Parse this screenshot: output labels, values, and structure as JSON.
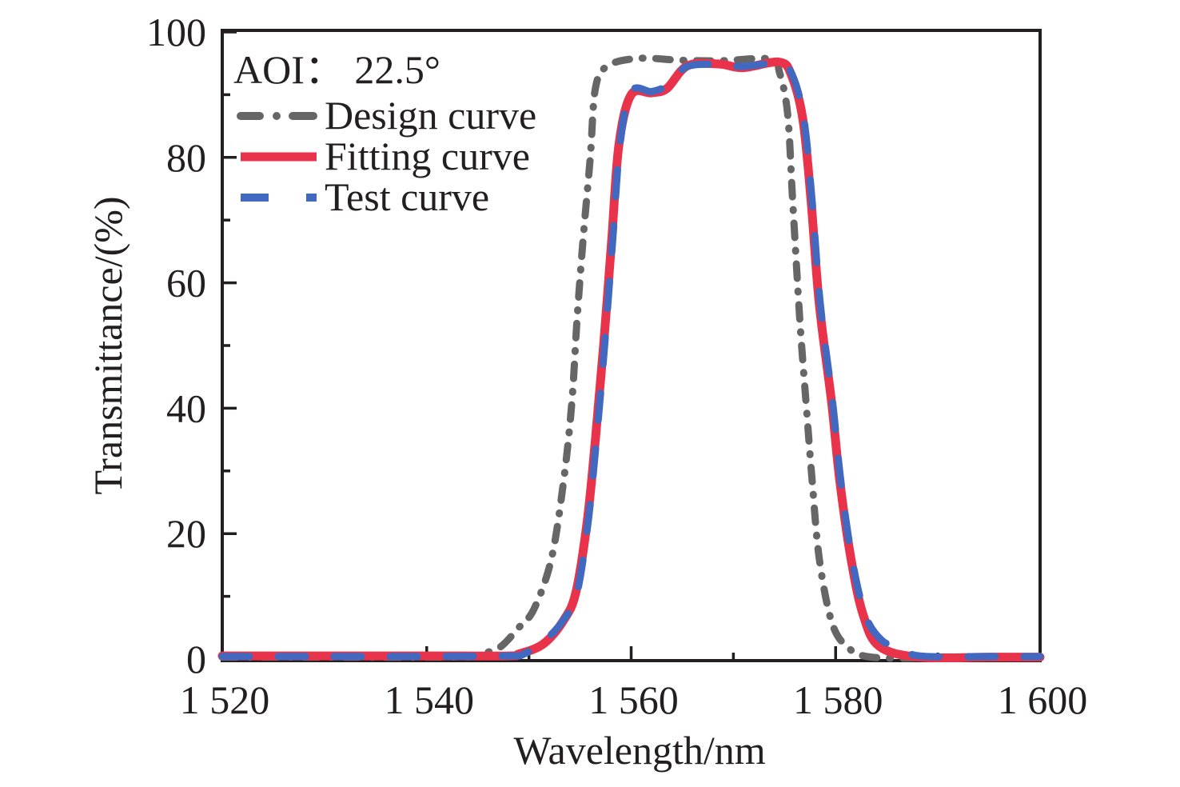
{
  "chart_data": {
    "type": "line",
    "title": "",
    "xlabel": "Wavelength/nm",
    "ylabel": "Transmittance/(%)",
    "xlim": [
      1520,
      1600
    ],
    "ylim": [
      0,
      100
    ],
    "x_ticks": [
      1520,
      1540,
      1560,
      1580,
      1600
    ],
    "x_tick_labels": [
      "1 520",
      "1 540",
      "1 560",
      "1 580",
      "1 600"
    ],
    "x_minor_ticks": [
      1530,
      1550,
      1570,
      1590
    ],
    "y_ticks": [
      0,
      20,
      40,
      60,
      80,
      100
    ],
    "y_tick_labels": [
      "0",
      "20",
      "40",
      "60",
      "80",
      "100"
    ],
    "y_minor_ticks": [
      10,
      30,
      50,
      70,
      90
    ],
    "grid": false,
    "legend_position": "top-left",
    "annotation": "AOI： 22.5°",
    "series": [
      {
        "name": "Design curve",
        "style": "dash-dot",
        "color": "#666666",
        "x": [
          1520,
          1530,
          1540,
          1545,
          1545.2,
          1547.1,
          1549,
          1550.5,
          1552.2,
          1553.4,
          1554.2,
          1554.7,
          1555.3,
          1556,
          1556.5,
          1557.7,
          1560.8,
          1564.7,
          1568.6,
          1573.7,
          1574.5,
          1575.3,
          1575.8,
          1576.5,
          1577.1,
          1577.7,
          1578.4,
          1579.6,
          1581.1,
          1583.5,
          1590,
          1600
        ],
        "y": [
          0.3,
          0.3,
          0.3,
          0.4,
          0.8,
          1.8,
          5,
          8,
          16,
          28.5,
          41,
          54,
          67,
          80,
          91,
          94.6,
          95.8,
          95.5,
          95.4,
          95.7,
          93.6,
          87,
          73,
          54,
          41,
          28.5,
          16,
          6,
          2,
          0.3,
          0.2,
          0.2
        ]
      },
      {
        "name": "Fitting curve",
        "style": "solid",
        "color": "#e8334a",
        "x": [
          1520,
          1530,
          1540,
          1548,
          1549,
          1551.4,
          1553.4,
          1554.6,
          1555.7,
          1556.5,
          1557.3,
          1558.1,
          1558.8,
          1560,
          1562,
          1563.5,
          1565.5,
          1568.6,
          1570.9,
          1574.5,
          1575.7,
          1576.8,
          1577.6,
          1578.4,
          1579.6,
          1580.4,
          1581.5,
          1582.7,
          1584.3,
          1588.2,
          1595,
          1600
        ],
        "y": [
          0.5,
          0.5,
          0.5,
          0.5,
          0.8,
          2.4,
          6.2,
          10.7,
          22,
          35,
          50,
          67,
          82,
          90,
          90.3,
          91,
          94.6,
          94.9,
          94.3,
          95.2,
          93,
          86,
          73,
          56.6,
          41,
          28.5,
          16,
          7,
          2,
          0.3,
          0.3,
          0.3
        ]
      },
      {
        "name": "Test curve",
        "style": "dashed",
        "color": "#4169c0",
        "x": [
          1520,
          1530,
          1540,
          1548,
          1549.5,
          1551.6,
          1553.5,
          1554.7,
          1555.8,
          1556.6,
          1557.4,
          1558.2,
          1558.9,
          1560,
          1562,
          1563.5,
          1565.5,
          1568.6,
          1570.9,
          1574.5,
          1575.8,
          1576.9,
          1577.7,
          1578.5,
          1579.7,
          1580.5,
          1581.6,
          1582.9,
          1584.5,
          1586,
          1588.2,
          1595,
          1600
        ],
        "y": [
          0.4,
          0.4,
          0.4,
          0.5,
          0.8,
          3,
          6.5,
          10.5,
          22,
          35,
          50,
          67,
          82,
          90.5,
          90.5,
          91.5,
          94.5,
          94.8,
          94.5,
          95,
          93,
          86,
          73,
          56.6,
          41,
          28.5,
          16,
          7,
          3,
          2,
          0.5,
          0.4,
          0.4
        ]
      }
    ]
  }
}
